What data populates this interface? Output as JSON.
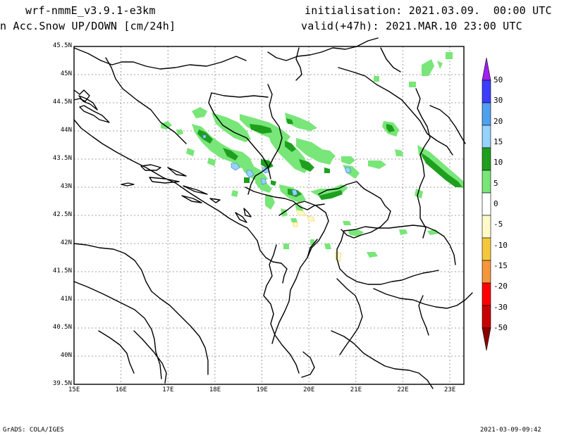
{
  "header": {
    "model": "wrf-nmmE_v3.9.1-e3km",
    "field": "n Acc.Snow UP/DOWN [cm/24h]",
    "init": "initialisation: 2021.03.09.  00:00 UTC",
    "valid": "valid(+47h): 2021.MAR.10 23:00 UTC"
  },
  "footer": {
    "left": "GrADS: COLA/IGES",
    "right": "2021-03-09-09:42"
  },
  "map": {
    "lat_labels": [
      "45.5N",
      "45N",
      "44.5N",
      "44N",
      "43.5N",
      "43N",
      "42.5N",
      "42N",
      "41.5N",
      "41N",
      "40.5N",
      "40N",
      "39.5N"
    ],
    "lon_labels": [
      "15E",
      "16E",
      "17E",
      "18E",
      "19E",
      "20E",
      "21E",
      "22E",
      "23E"
    ],
    "lat_range": [
      39.5,
      45.5
    ],
    "lon_range": [
      15.0,
      23.3
    ],
    "grid": true
  },
  "colorbar": {
    "labels": [
      "50",
      "30",
      "20",
      "15",
      "10",
      "5",
      "0",
      "-5",
      "-10",
      "-15",
      "-20",
      "-30",
      "-50"
    ],
    "colors": [
      "#a020f0",
      "#3c3cff",
      "#50a0f0",
      "#96d2fa",
      "#1ea01e",
      "#78e678",
      "#ffffff",
      "#fffac8",
      "#f5c83c",
      "#f5963c",
      "#ff0000",
      "#c80000",
      "#8b0000"
    ],
    "top_arrow_color": "#a020f0",
    "bottom_arrow_color": "#8b0000"
  }
}
